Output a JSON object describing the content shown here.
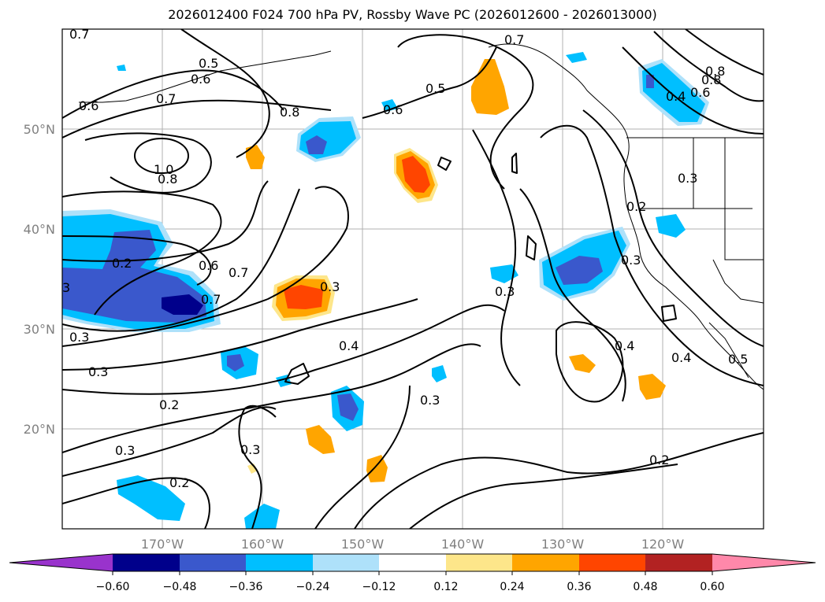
{
  "title": "2026012400 F024 700 hPa PV, Rossby Wave PC (2026012600 - 2026013000)",
  "map": {
    "lon_range": [
      -180,
      -110
    ],
    "lat_range": [
      10,
      60
    ],
    "lat_ticks": [
      "20°N",
      "30°N",
      "40°N",
      "50°N"
    ],
    "lon_ticks": [
      "170°W",
      "160°W",
      "150°W",
      "140°W",
      "130°W",
      "120°W"
    ],
    "grid": true,
    "contour_color": "#000000",
    "contour_labels": [
      "0.7",
      "0.5",
      "0.6",
      "0.7",
      "0.6",
      "0.8",
      "1.0",
      "0.8",
      "0.6",
      "0.5",
      "0.7",
      "0.8",
      "0.4",
      "0.6",
      "0.8",
      "0.3",
      "0.2",
      "0.3",
      "0.2",
      "0.6",
      "0.7",
      "0.7",
      "3",
      "0.3",
      "0.3",
      "0.3",
      "0.4",
      "0.2",
      "0.3",
      "0.3",
      "0.3",
      "0.4",
      "0.4",
      "0.5",
      "0.2",
      "0.3",
      "0.2"
    ]
  },
  "colorbar": {
    "ticks": [
      "−0.60",
      "−0.48",
      "−0.36",
      "−0.24",
      "−0.12",
      "0.12",
      "0.24",
      "0.36",
      "0.48",
      "0.60"
    ],
    "colors": [
      "#9933cc",
      "#00008b",
      "#3a58cc",
      "#00bfff",
      "#aee1fa",
      "#ffffff",
      "#fde68a",
      "#ffa500",
      "#ff4500",
      "#b22222",
      "#ff88aa"
    ]
  }
}
